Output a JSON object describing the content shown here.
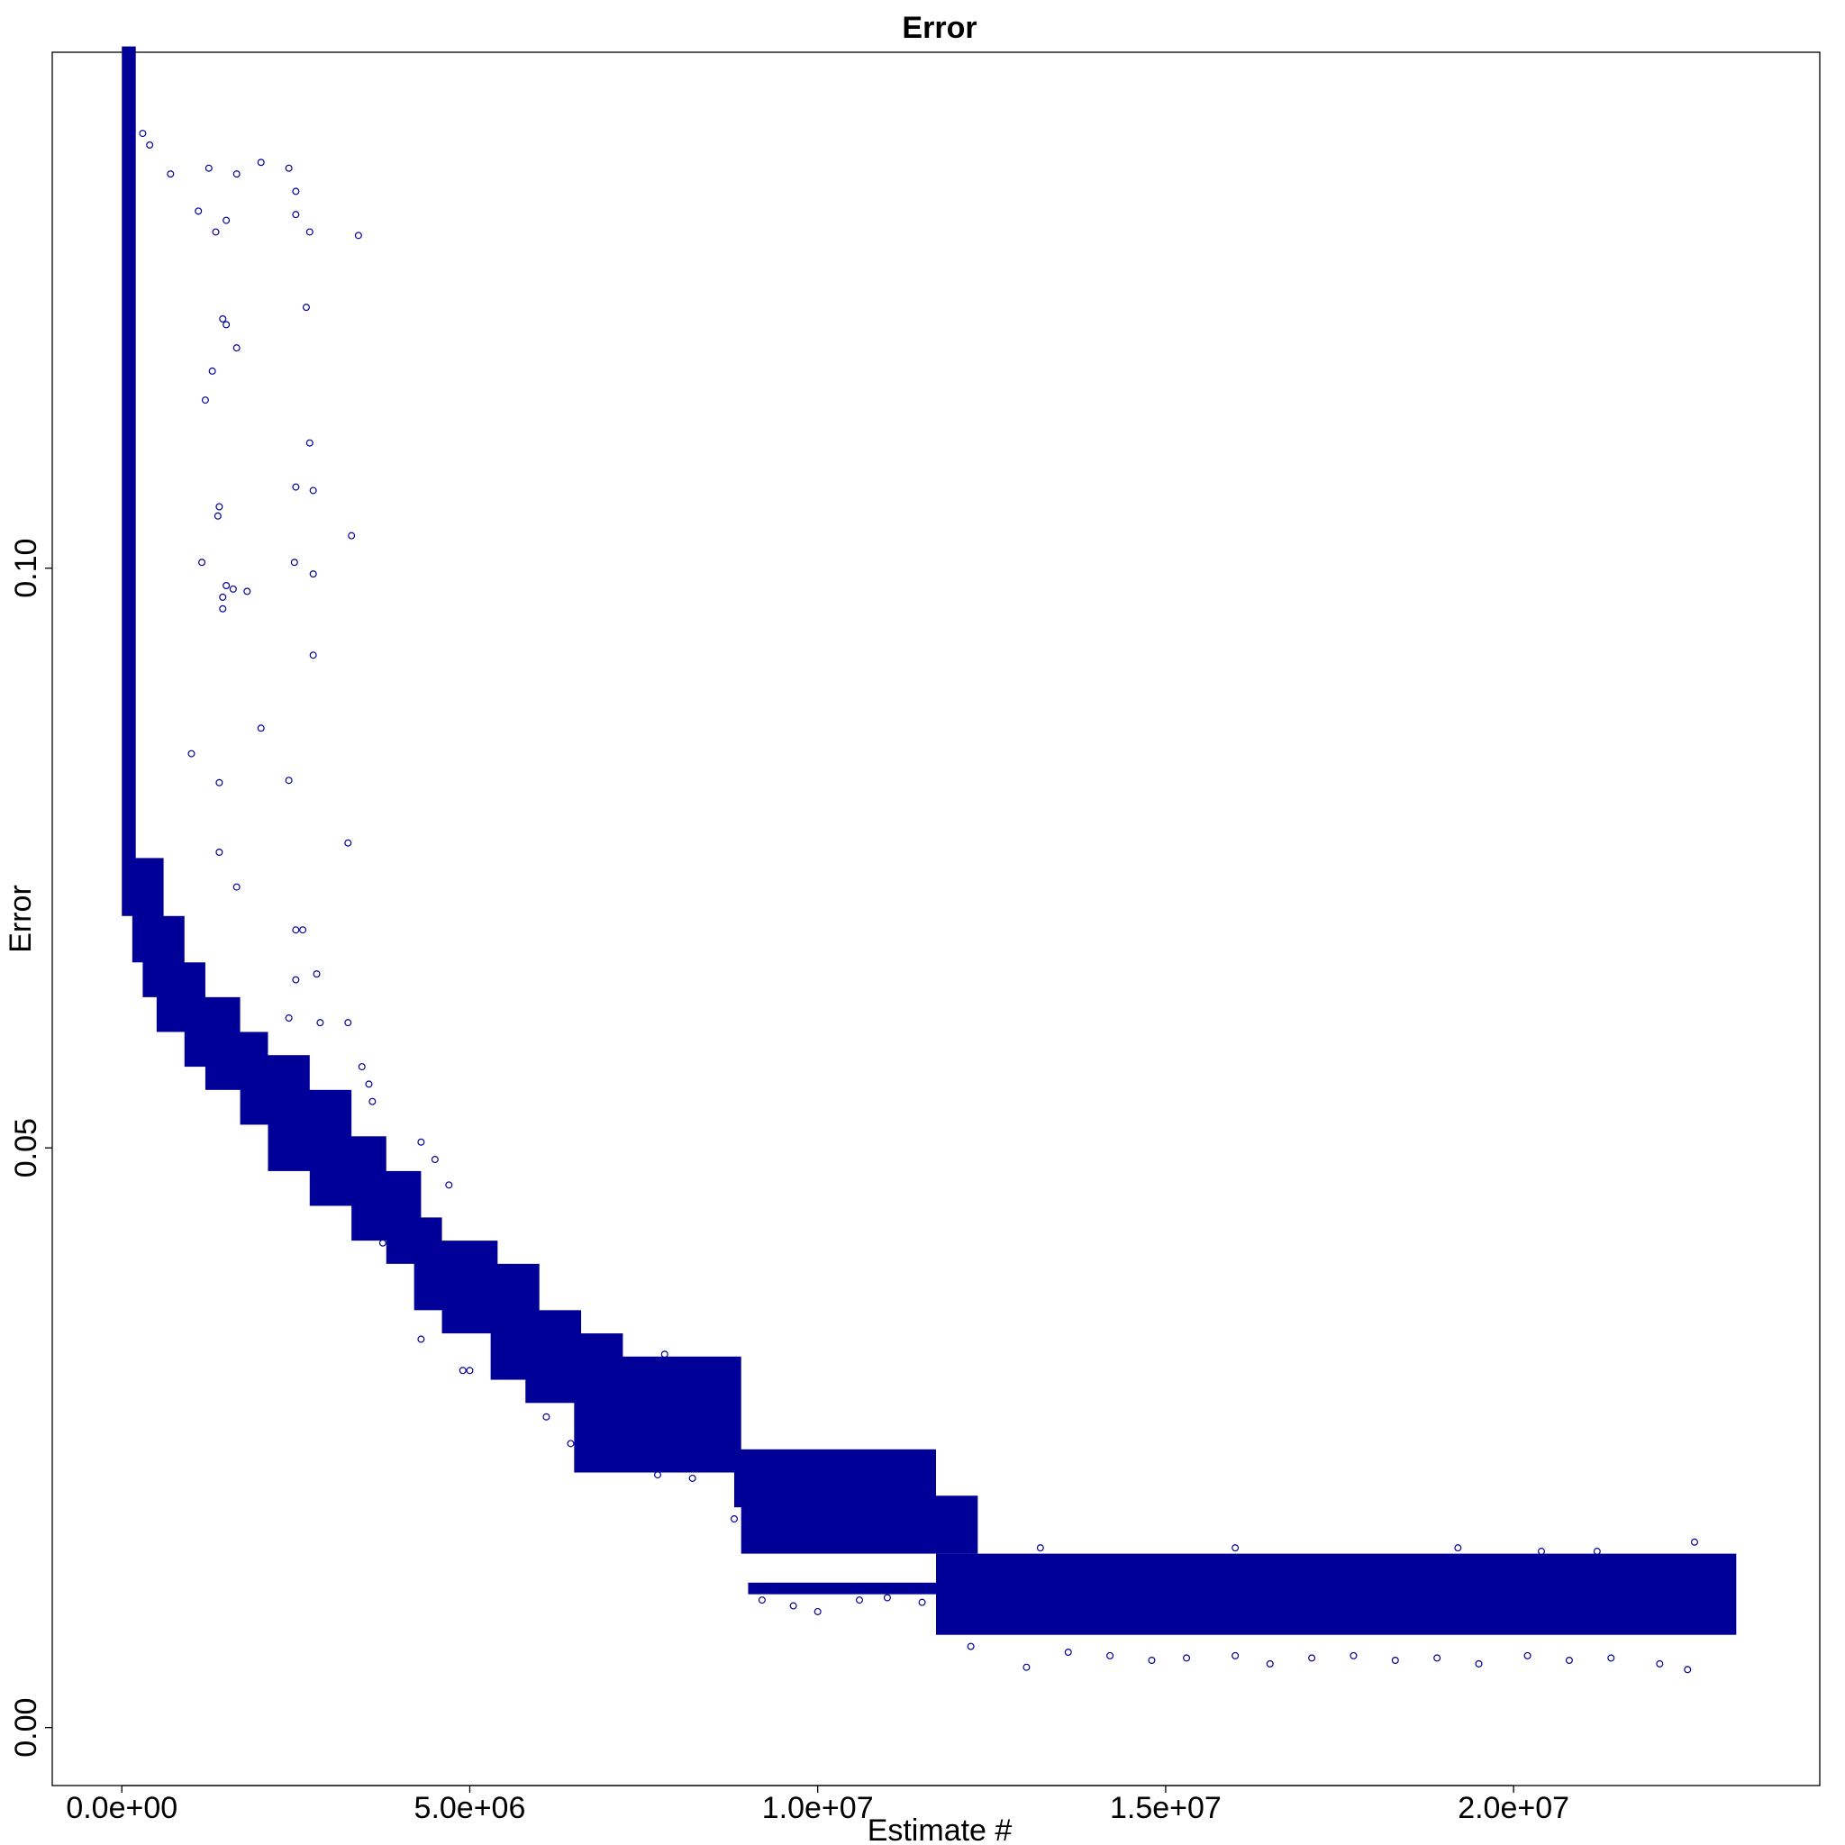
{
  "chart_data": {
    "type": "scatter",
    "title": "Error",
    "xlabel": "Estimate #",
    "ylabel": "Error",
    "xlim": [
      -1000000,
      24400000
    ],
    "ylim": [
      -0.005,
      0.1445
    ],
    "x_ticks": [
      {
        "value": 0,
        "label": "0.0e+00"
      },
      {
        "value": 5000000,
        "label": "5.0e+06"
      },
      {
        "value": 10000000,
        "label": "1.0e+07"
      },
      {
        "value": 15000000,
        "label": "1.5e+07"
      },
      {
        "value": 20000000,
        "label": "2.0e+07"
      }
    ],
    "y_ticks": [
      {
        "value": 0,
        "label": "0.00"
      },
      {
        "value": 0.05,
        "label": "0.05"
      },
      {
        "value": 0.1,
        "label": "0.10"
      }
    ],
    "marker": "open-circle",
    "color": "#000099",
    "grid": false,
    "legend": "none",
    "series": [
      {
        "values_note_omitted": true,
        "points": [
          [
            150000,
            0.1378
          ],
          [
            300000,
            0.1375
          ],
          [
            400000,
            0.1365
          ],
          [
            700000,
            0.134
          ],
          [
            1250000,
            0.1345
          ],
          [
            1650000,
            0.134
          ],
          [
            2000000,
            0.135
          ],
          [
            2400000,
            0.1345
          ],
          [
            2500000,
            0.1325
          ],
          [
            2500000,
            0.1305
          ],
          [
            2700000,
            0.129
          ],
          [
            3400000,
            0.1287
          ],
          [
            1500000,
            0.13
          ],
          [
            1350000,
            0.129
          ],
          [
            1100000,
            0.1308
          ],
          [
            2650000,
            0.1225
          ],
          [
            1450000,
            0.1215
          ],
          [
            1500000,
            0.121
          ],
          [
            1650000,
            0.119
          ],
          [
            1300000,
            0.117
          ],
          [
            1200000,
            0.1145
          ],
          [
            2700000,
            0.1108
          ],
          [
            2500000,
            0.107
          ],
          [
            2750000,
            0.1067
          ],
          [
            3300000,
            0.1028
          ],
          [
            1400000,
            0.1053
          ],
          [
            1380000,
            0.1045
          ],
          [
            2480000,
            0.1005
          ],
          [
            1150000,
            0.1005
          ],
          [
            1500000,
            0.0985
          ],
          [
            1600000,
            0.0982
          ],
          [
            1800000,
            0.098
          ],
          [
            1450000,
            0.0975
          ],
          [
            1450000,
            0.0965
          ],
          [
            2750000,
            0.0995
          ],
          [
            2750000,
            0.0925
          ],
          [
            2000000,
            0.0862
          ],
          [
            1000000,
            0.084
          ],
          [
            1400000,
            0.0815
          ],
          [
            2400000,
            0.0817
          ],
          [
            3250000,
            0.0763
          ],
          [
            1400000,
            0.0755
          ],
          [
            1650000,
            0.0725
          ],
          [
            2500000,
            0.0688
          ],
          [
            2600000,
            0.0688
          ],
          [
            2500000,
            0.0645
          ],
          [
            2800000,
            0.065
          ],
          [
            2400000,
            0.0612
          ],
          [
            2850000,
            0.0608
          ],
          [
            3250000,
            0.0608
          ],
          [
            3450000,
            0.057
          ],
          [
            3550000,
            0.0555
          ],
          [
            3600000,
            0.054
          ],
          [
            4300000,
            0.0505
          ],
          [
            4500000,
            0.049
          ],
          [
            4700000,
            0.0468
          ],
          [
            3750000,
            0.0418
          ],
          [
            4100000,
            0.0412
          ],
          [
            4500000,
            0.0395
          ],
          [
            4900000,
            0.0388
          ],
          [
            4700000,
            0.0372
          ],
          [
            4300000,
            0.0335
          ],
          [
            4900000,
            0.0308
          ],
          [
            5000000,
            0.0308
          ],
          [
            5400000,
            0.0308
          ],
          [
            5700000,
            0.0308
          ],
          [
            6100000,
            0.0268
          ],
          [
            6450000,
            0.0245
          ],
          [
            7100000,
            0.023
          ],
          [
            7700000,
            0.0218
          ],
          [
            8200000,
            0.0215
          ],
          [
            8800000,
            0.018
          ],
          [
            9200000,
            0.011
          ],
          [
            9650000,
            0.0105
          ],
          [
            10000000,
            0.01
          ],
          [
            10600000,
            0.011
          ],
          [
            11000000,
            0.0112
          ],
          [
            11500000,
            0.0108
          ],
          [
            12200000,
            0.007
          ],
          [
            13000000,
            0.0052
          ],
          [
            13600000,
            0.0065
          ],
          [
            14200000,
            0.0062
          ],
          [
            14800000,
            0.0058
          ],
          [
            15300000,
            0.006
          ],
          [
            16000000,
            0.0062
          ],
          [
            16500000,
            0.0055
          ],
          [
            17100000,
            0.006
          ],
          [
            17700000,
            0.0062
          ],
          [
            18300000,
            0.0058
          ],
          [
            18900000,
            0.006
          ],
          [
            19500000,
            0.0055
          ],
          [
            20200000,
            0.0062
          ],
          [
            20800000,
            0.0058
          ],
          [
            21400000,
            0.006
          ],
          [
            22100000,
            0.0055
          ],
          [
            22500000,
            0.005
          ],
          [
            13200000,
            0.0155
          ],
          [
            16000000,
            0.0155
          ],
          [
            19200000,
            0.0155
          ],
          [
            22600000,
            0.016
          ],
          [
            20400000,
            0.0152
          ],
          [
            21200000,
            0.0152
          ],
          [
            8400000,
            0.0308
          ],
          [
            6200000,
            0.0322
          ],
          [
            7800000,
            0.0322
          ]
        ]
      }
    ]
  }
}
